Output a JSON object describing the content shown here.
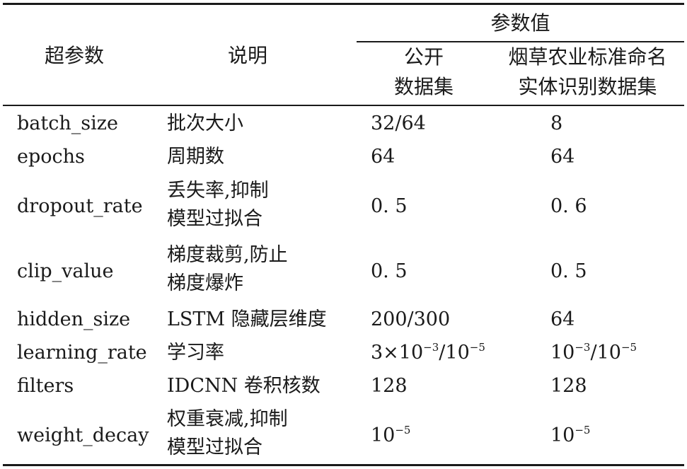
{
  "header": {
    "param": "超参数",
    "desc": "说明",
    "value": "参数值",
    "public_line1": "公开",
    "public_line2": "数据集",
    "tobacco_line1": "烟草农业标准命名",
    "tobacco_line2": "实体识别数据集"
  },
  "rows": [
    {
      "name": "batch_size",
      "desc": [
        "批次大小"
      ],
      "public": "32/64",
      "tobacco": "8"
    },
    {
      "name": "epochs",
      "desc": [
        "周期数"
      ],
      "public": "64",
      "tobacco": "64"
    },
    {
      "name": "dropout_rate",
      "desc": [
        "丢失率,抑制",
        "模型过拟合"
      ],
      "public": "0. 5",
      "tobacco": "0. 6"
    },
    {
      "name": "clip_value",
      "desc": [
        "梯度裁剪,防止",
        "梯度爆炸"
      ],
      "public": "0. 5",
      "tobacco": "0. 5"
    },
    {
      "name": "hidden_size",
      "desc": [
        "LSTM 隐藏层维度"
      ],
      "public": "200/300",
      "tobacco": "64"
    },
    {
      "name": "learning_rate",
      "desc": [
        "学习率"
      ],
      "public": {
        "mant": "3×10",
        "exp1": "−3",
        "sep": "/10",
        "exp2": "−5"
      },
      "tobacco": {
        "mant": "10",
        "exp1": "−3",
        "sep": "/10",
        "exp2": "−5"
      }
    },
    {
      "name": "filters",
      "desc": [
        "IDCNN 卷积核数"
      ],
      "public": "128",
      "tobacco": "128"
    },
    {
      "name": "weight_decay",
      "desc": [
        "权重衰减,抑制",
        "模型过拟合"
      ],
      "public": {
        "base": "10",
        "exp": "−5"
      },
      "tobacco": {
        "base": "10",
        "exp": "−5"
      }
    }
  ]
}
